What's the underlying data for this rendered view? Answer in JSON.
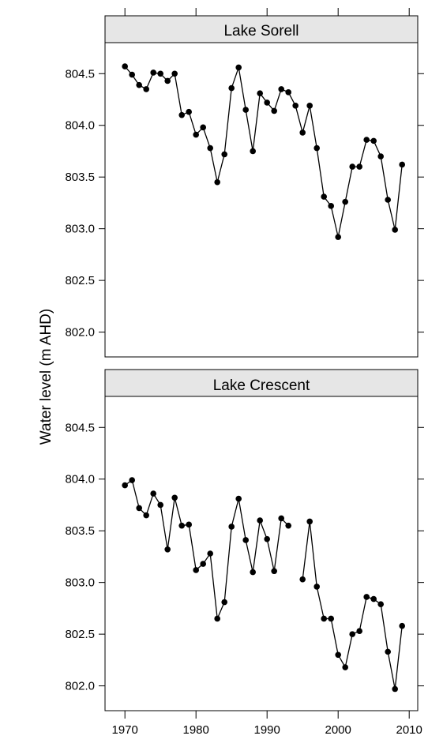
{
  "chart_data": {
    "type": "line",
    "ylabel": "Water level (m AHD)",
    "xlim": [
      1967.2,
      2011.2
    ],
    "ylim": [
      801.76,
      804.8
    ],
    "x_ticks": [
      1970,
      1980,
      1990,
      2000,
      2010
    ],
    "y_ticks": [
      802.0,
      802.5,
      803.0,
      803.5,
      804.0,
      804.5
    ],
    "x_tick_labels": [
      "1970",
      "1980",
      "1990",
      "2000",
      "2010"
    ],
    "y_tick_labels": [
      "802.0",
      "802.5",
      "803.0",
      "803.5",
      "804.0",
      "804.5"
    ],
    "marker": "filled-circle",
    "line_color": "#000000",
    "strip_color": "#e6e6e6",
    "panels": [
      {
        "strip_label": "Lake Sorell",
        "points": [
          [
            1970,
            804.57
          ],
          [
            1971,
            804.49
          ],
          [
            1972,
            804.39
          ],
          [
            1973,
            804.35
          ],
          [
            1974,
            804.51
          ],
          [
            1975,
            804.5
          ],
          [
            1976,
            804.43
          ],
          [
            1977,
            804.5
          ],
          [
            1978,
            804.1
          ],
          [
            1979,
            804.13
          ],
          [
            1980,
            803.91
          ],
          [
            1981,
            803.98
          ],
          [
            1982,
            803.78
          ],
          [
            1983,
            803.45
          ],
          [
            1984,
            803.72
          ],
          [
            1985,
            804.36
          ],
          [
            1986,
            804.56
          ],
          [
            1987,
            804.15
          ],
          [
            1988,
            803.75
          ],
          [
            1989,
            804.31
          ],
          [
            1990,
            804.22
          ],
          [
            1991,
            804.14
          ],
          [
            1992,
            804.35
          ],
          [
            1993,
            804.32
          ],
          [
            1994,
            804.19
          ],
          [
            1995,
            803.93
          ],
          [
            1996,
            804.19
          ],
          [
            1997,
            803.78
          ],
          [
            1998,
            803.31
          ],
          [
            1999,
            803.22
          ],
          [
            2000,
            802.92
          ],
          [
            2001,
            803.26
          ],
          [
            2002,
            803.6
          ],
          [
            2003,
            803.6
          ],
          [
            2004,
            803.86
          ],
          [
            2005,
            803.85
          ],
          [
            2006,
            803.7
          ],
          [
            2007,
            803.28
          ],
          [
            2008,
            802.99
          ],
          [
            2009,
            803.62
          ]
        ]
      },
      {
        "strip_label": "Lake Crescent",
        "points": [
          [
            1970,
            803.94
          ],
          [
            1971,
            803.99
          ],
          [
            1972,
            803.72
          ],
          [
            1973,
            803.65
          ],
          [
            1974,
            803.86
          ],
          [
            1975,
            803.75
          ],
          [
            1976,
            803.32
          ],
          [
            1977,
            803.82
          ],
          [
            1978,
            803.55
          ],
          [
            1979,
            803.56
          ],
          [
            1980,
            803.12
          ],
          [
            1981,
            803.18
          ],
          [
            1982,
            803.28
          ],
          [
            1983,
            802.65
          ],
          [
            1984,
            802.81
          ],
          [
            1985,
            803.54
          ],
          [
            1986,
            803.81
          ],
          [
            1987,
            803.41
          ],
          [
            1988,
            803.1
          ],
          [
            1989,
            803.6
          ],
          [
            1990,
            803.42
          ],
          [
            1991,
            803.11
          ],
          [
            1992,
            803.62
          ],
          [
            1993,
            803.55
          ],
          [
            1994,
            null
          ],
          [
            1995,
            803.03
          ],
          [
            1996,
            803.59
          ],
          [
            1997,
            802.96
          ],
          [
            1998,
            802.65
          ],
          [
            1999,
            802.65
          ],
          [
            2000,
            802.3
          ],
          [
            2001,
            802.18
          ],
          [
            2002,
            802.5
          ],
          [
            2003,
            802.53
          ],
          [
            2004,
            802.86
          ],
          [
            2005,
            802.84
          ],
          [
            2006,
            802.79
          ],
          [
            2007,
            802.33
          ],
          [
            2008,
            801.97
          ],
          [
            2009,
            802.58
          ]
        ]
      }
    ]
  }
}
